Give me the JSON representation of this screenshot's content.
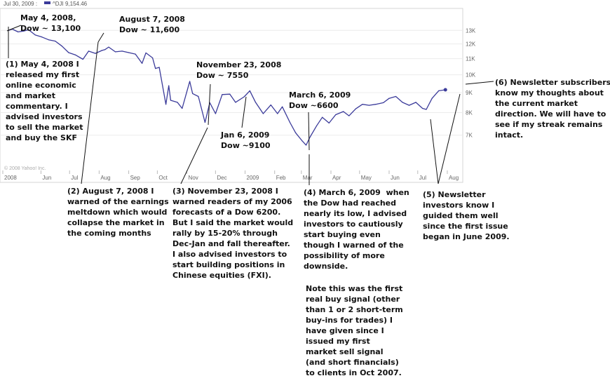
{
  "header": {
    "date": "Jul 30, 2009 :",
    "series_label": "^DJI 9,154.46",
    "legend_color": "#3b3b9a"
  },
  "copyright": "© 2008 Yahoo! Inc.",
  "chart_data": {
    "type": "line",
    "series": [
      {
        "name": "^DJI",
        "color": "#3b3b9a",
        "points": [
          [
            "2008-04-28",
            13000
          ],
          [
            "2008-05-02",
            13100
          ],
          [
            "2008-05-08",
            12880
          ],
          [
            "2008-05-14",
            12950
          ],
          [
            "2008-05-19",
            13050
          ],
          [
            "2008-05-26",
            12650
          ],
          [
            "2008-06-02",
            12500
          ],
          [
            "2008-06-09",
            12300
          ],
          [
            "2008-06-16",
            12200
          ],
          [
            "2008-06-23",
            11850
          ],
          [
            "2008-06-30",
            11400
          ],
          [
            "2008-07-07",
            11250
          ],
          [
            "2008-07-15",
            10960
          ],
          [
            "2008-07-21",
            11500
          ],
          [
            "2008-07-28",
            11350
          ],
          [
            "2008-08-04",
            11550
          ],
          [
            "2008-08-07",
            11600
          ],
          [
            "2008-08-11",
            11780
          ],
          [
            "2008-08-18",
            11450
          ],
          [
            "2008-08-25",
            11500
          ],
          [
            "2008-09-01",
            11400
          ],
          [
            "2008-09-08",
            11300
          ],
          [
            "2008-09-15",
            10700
          ],
          [
            "2008-09-19",
            11380
          ],
          [
            "2008-09-26",
            11050
          ],
          [
            "2008-09-29",
            10380
          ],
          [
            "2008-10-03",
            10450
          ],
          [
            "2008-10-10",
            8400
          ],
          [
            "2008-10-13",
            9380
          ],
          [
            "2008-10-15",
            8600
          ],
          [
            "2008-10-22",
            8500
          ],
          [
            "2008-10-27",
            8200
          ],
          [
            "2008-11-04",
            9620
          ],
          [
            "2008-11-07",
            8950
          ],
          [
            "2008-11-13",
            8800
          ],
          [
            "2008-11-20",
            7550
          ],
          [
            "2008-11-25",
            8480
          ],
          [
            "2008-12-01",
            7950
          ],
          [
            "2008-12-08",
            8900
          ],
          [
            "2008-12-16",
            8920
          ],
          [
            "2008-12-22",
            8500
          ],
          [
            "2008-12-31",
            8780
          ],
          [
            "2009-01-06",
            9100
          ],
          [
            "2009-01-12",
            8500
          ],
          [
            "2009-01-20",
            7950
          ],
          [
            "2009-01-28",
            8370
          ],
          [
            "2009-02-04",
            7950
          ],
          [
            "2009-02-09",
            8280
          ],
          [
            "2009-02-17",
            7550
          ],
          [
            "2009-02-23",
            7100
          ],
          [
            "2009-03-02",
            6760
          ],
          [
            "2009-03-06",
            6600
          ],
          [
            "2009-03-10",
            6920
          ],
          [
            "2009-03-17",
            7400
          ],
          [
            "2009-03-23",
            7780
          ],
          [
            "2009-03-30",
            7520
          ],
          [
            "2009-04-06",
            7900
          ],
          [
            "2009-04-14",
            8050
          ],
          [
            "2009-04-20",
            7850
          ],
          [
            "2009-04-27",
            8180
          ],
          [
            "2009-05-04",
            8400
          ],
          [
            "2009-05-11",
            8350
          ],
          [
            "2009-05-18",
            8400
          ],
          [
            "2009-05-26",
            8480
          ],
          [
            "2009-06-01",
            8700
          ],
          [
            "2009-06-08",
            8800
          ],
          [
            "2009-06-15",
            8500
          ],
          [
            "2009-06-22",
            8350
          ],
          [
            "2009-06-29",
            8500
          ],
          [
            "2009-07-06",
            8200
          ],
          [
            "2009-07-10",
            8150
          ],
          [
            "2009-07-16",
            8700
          ],
          [
            "2009-07-23",
            9100
          ],
          [
            "2009-07-30",
            9154
          ]
        ]
      }
    ],
    "x_range": [
      "2008-04-22",
      "2009-08-15"
    ],
    "y_range": [
      6200,
      14200
    ],
    "y_scale": "log",
    "y_ticks": [
      {
        "value": 13000,
        "label": "13K"
      },
      {
        "value": 12000,
        "label": "12K"
      },
      {
        "value": 11000,
        "label": "11K"
      },
      {
        "value": 10000,
        "label": "10K"
      },
      {
        "value": 9000,
        "label": "9K"
      },
      {
        "value": 8000,
        "label": "8K"
      },
      {
        "value": 7000,
        "label": "7K"
      }
    ],
    "x_ticks": [
      {
        "date": "2008-04-22",
        "label": "2008"
      },
      {
        "date": "2008-06-01",
        "label": "Jun"
      },
      {
        "date": "2008-07-01",
        "label": "Jul"
      },
      {
        "date": "2008-08-01",
        "label": "Aug"
      },
      {
        "date": "2008-09-01",
        "label": "Sep"
      },
      {
        "date": "2008-10-01",
        "label": "Oct"
      },
      {
        "date": "2008-11-01",
        "label": "Nov"
      },
      {
        "date": "2008-12-01",
        "label": "Dec"
      },
      {
        "date": "2009-01-01",
        "label": "2009"
      },
      {
        "date": "2009-02-01",
        "label": "Feb"
      },
      {
        "date": "2009-03-01",
        "label": "Mar"
      },
      {
        "date": "2009-04-01",
        "label": "Apr"
      },
      {
        "date": "2009-05-01",
        "label": "May"
      },
      {
        "date": "2009-06-01",
        "label": "Jun"
      },
      {
        "date": "2009-07-01",
        "label": "Jul"
      },
      {
        "date": "2009-08-01",
        "label": "Aug"
      }
    ],
    "gridlines": "horizontal",
    "annotations": [
      {
        "id": "point-may",
        "text": "May 4, 2008,\nDow ~ 13,100"
      },
      {
        "id": "point-aug",
        "text": "August 7, 2008\nDow ~ 11,600"
      },
      {
        "id": "point-nov",
        "text": "November 23, 2008\nDow ~ 7550"
      },
      {
        "id": "point-jan",
        "text": "Jan 6, 2009\nDow ~9100"
      },
      {
        "id": "point-mar",
        "text": "March 6, 2009\nDow ~6600"
      },
      {
        "id": "note-1",
        "text": "(1) May 4, 2008 I\nreleased my first\nonline economic\nand market\ncommentary. I\nadvised investors\nto sell the market\nand buy the SKF"
      },
      {
        "id": "note-2",
        "text": "(2) August 7, 2008 I\nwarned of the earnings\nmeltdown which would\ncollapse the market in\nthe coming months"
      },
      {
        "id": "note-3",
        "text": "(3) November 23, 2008 I\nwarned readers of my 2006\nforecasts of a Dow 6200.\nBut I said the market would\nrally by 15-20% through\nDec-Jan and fall thereafter.\nI also advised investors to\nstart building positions in\nChinese equities (FXI)."
      },
      {
        "id": "note-4",
        "text": "(4) March 6, 2009  when\nthe Dow had reached\nnearly its low, I advised\ninvestors to cautiously\nstart buying even\nthough I warned of the\npossibility of more\ndownside."
      },
      {
        "id": "note-4b",
        "text": "Note this was the first\nreal buy signal (other\nthan 1 or 2 short-term\nbuy-ins for trades) I\nhave given since I\nissued my first\nmarket sell signal\n(and short financials)\nto clients in Oct 2007."
      },
      {
        "id": "note-5",
        "text": "(5) Newsletter\ninvestors know I\nguided them well\nsince the first issue\nbegan in June 2009."
      },
      {
        "id": "note-6",
        "text": "(6) Newsletter subscribers\nknow my thoughts about\nthe current market\ndirection. We will have to\nsee if my streak remains\nintact."
      }
    ]
  }
}
